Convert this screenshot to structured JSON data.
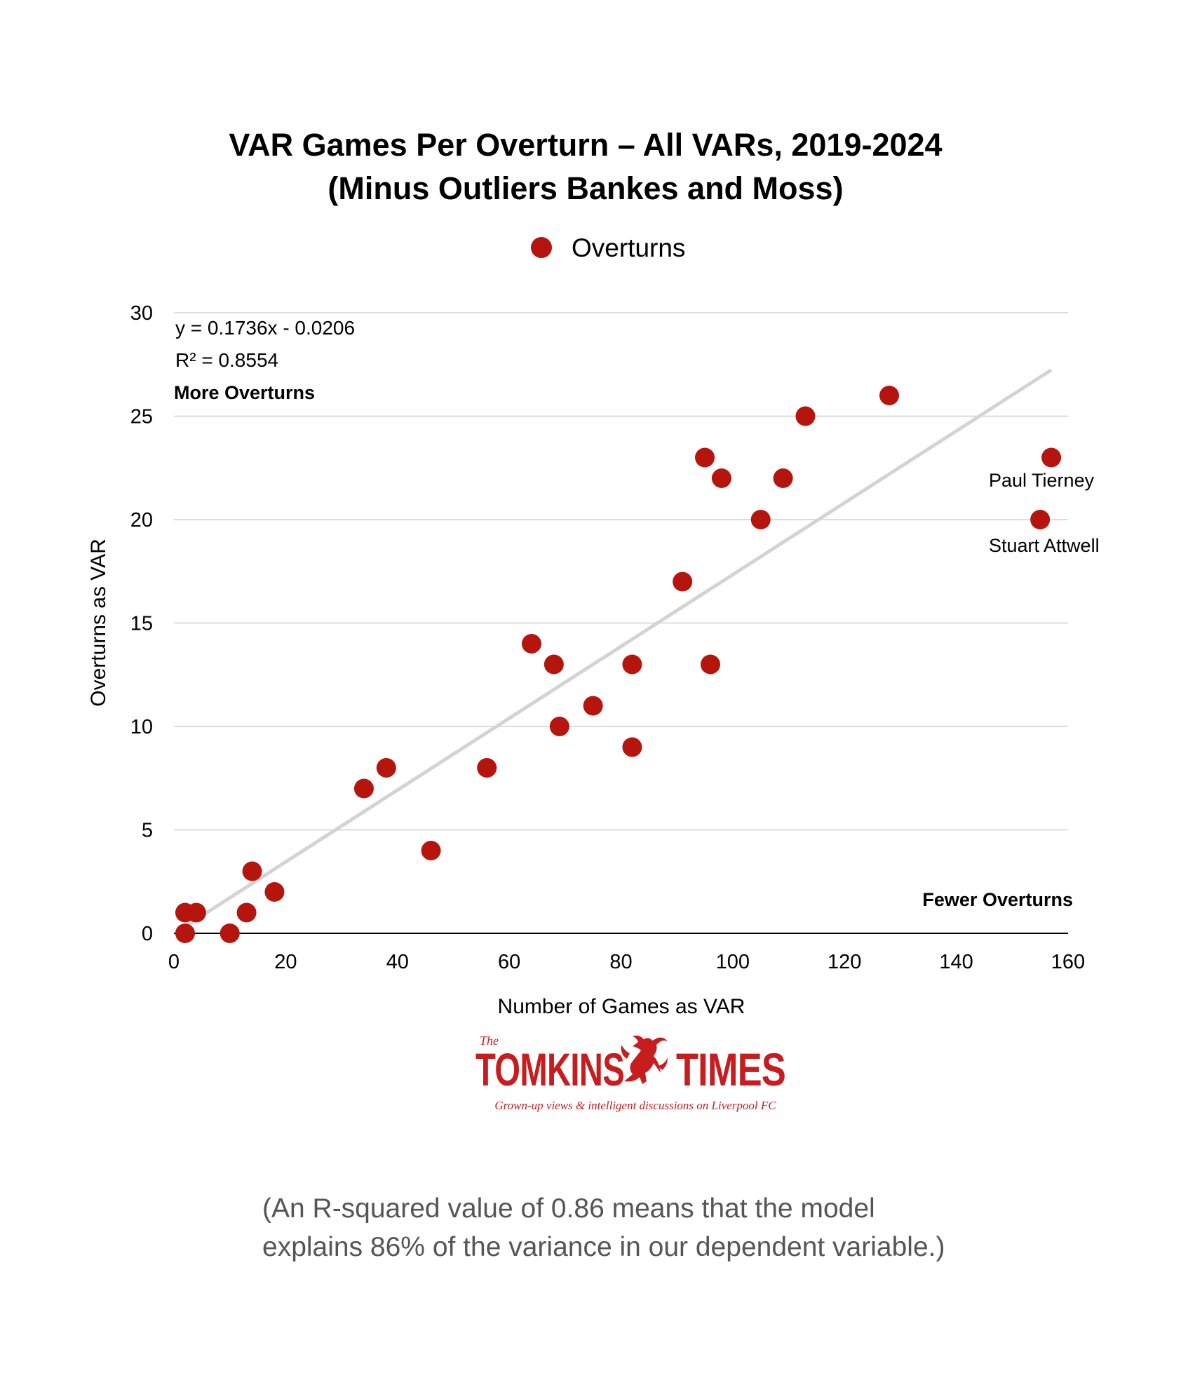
{
  "chart_data": {
    "type": "scatter",
    "title_line1": "VAR Games Per Overturn – All VARs, 2019-2024",
    "title_line2": "(Minus Outliers Bankes and Moss)",
    "legend": [
      {
        "label": "Overturns",
        "color": "#b5150d",
        "marker": "circle"
      }
    ],
    "legend_position": "top-center",
    "xlabel": "Number of Games as VAR",
    "ylabel": "Overturns as VAR",
    "xlim": [
      0,
      160
    ],
    "ylim": [
      0,
      30
    ],
    "x_ticks": [
      0,
      20,
      40,
      60,
      80,
      100,
      120,
      140,
      160
    ],
    "y_ticks": [
      0,
      5,
      10,
      15,
      20,
      25,
      30
    ],
    "grid": "horizontal",
    "series": [
      {
        "name": "Overturns",
        "color": "#b5150d",
        "points": [
          {
            "x": 2,
            "y": 0
          },
          {
            "x": 2,
            "y": 1
          },
          {
            "x": 4,
            "y": 1
          },
          {
            "x": 10,
            "y": 0
          },
          {
            "x": 13,
            "y": 1
          },
          {
            "x": 14,
            "y": 3
          },
          {
            "x": 18,
            "y": 2
          },
          {
            "x": 34,
            "y": 7
          },
          {
            "x": 38,
            "y": 8
          },
          {
            "x": 46,
            "y": 4
          },
          {
            "x": 56,
            "y": 8
          },
          {
            "x": 64,
            "y": 14
          },
          {
            "x": 68,
            "y": 13
          },
          {
            "x": 69,
            "y": 10
          },
          {
            "x": 75,
            "y": 11
          },
          {
            "x": 82,
            "y": 13
          },
          {
            "x": 82,
            "y": 9
          },
          {
            "x": 91,
            "y": 17
          },
          {
            "x": 95,
            "y": 23
          },
          {
            "x": 96,
            "y": 13
          },
          {
            "x": 98,
            "y": 22
          },
          {
            "x": 105,
            "y": 20
          },
          {
            "x": 109,
            "y": 22
          },
          {
            "x": 113,
            "y": 25
          },
          {
            "x": 128,
            "y": 26
          },
          {
            "x": 155,
            "y": 20
          },
          {
            "x": 157,
            "y": 23
          }
        ]
      }
    ],
    "trendline": {
      "type": "linear",
      "slope": 0.1736,
      "intercept": -0.0206,
      "x_range": [
        2,
        157
      ],
      "color": "#d3d3d3",
      "equation_text": "y = 0.1736x - 0.0206",
      "r2_text": "R² = 0.8554"
    },
    "annotations": {
      "more_overturns": "More Overturns",
      "fewer_overturns": "Fewer Overturns"
    },
    "point_labels": [
      {
        "text": "Paul Tierney",
        "x": 157,
        "y": 23
      },
      {
        "text": "Stuart Attwell",
        "x": 155,
        "y": 20
      }
    ]
  },
  "logo": {
    "the": "The",
    "brand_left": "TOMKINS",
    "brand_right": "TIMES",
    "tagline": "Grown-up views & intelligent discussions on Liverpool FC",
    "color": "#c81d1f"
  },
  "footnote": {
    "line1": "(An R-squared value of 0.86 means that the model",
    "line2": "explains 86% of the variance in our dependent variable.)"
  }
}
